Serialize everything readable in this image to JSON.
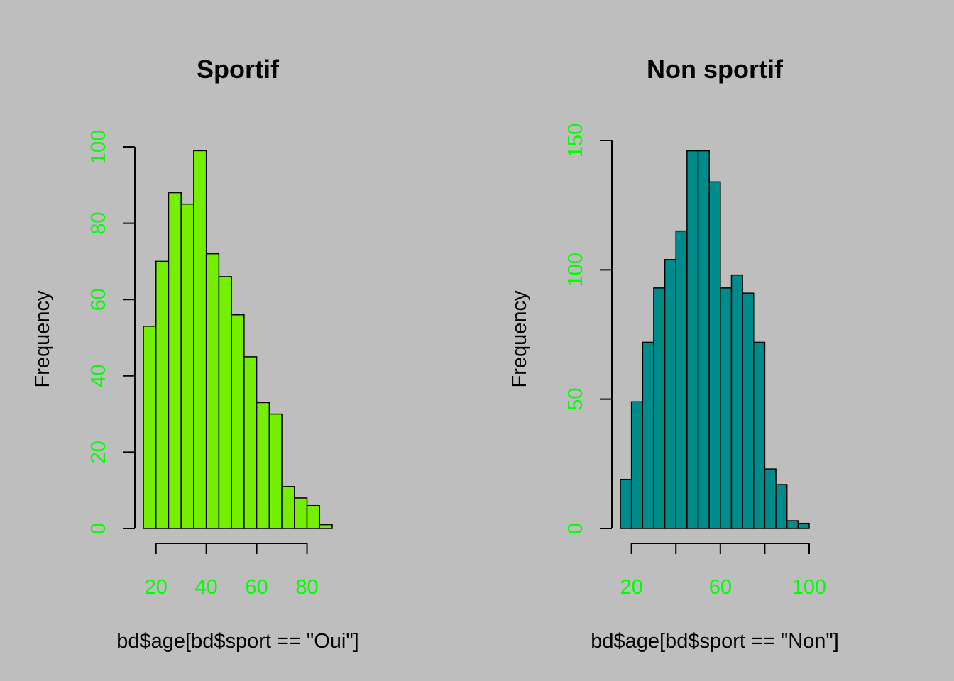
{
  "background": "#bebebe",
  "tick_color": "#00ff00",
  "chart_data": [
    {
      "type": "bar",
      "title": "Sportif",
      "xlabel": "bd$age[bd$sport == \"Oui\"]",
      "ylabel": "Frequency",
      "bar_color": "#76ee00",
      "bin_start": 15,
      "bin_width": 5,
      "values": [
        53,
        70,
        88,
        85,
        99,
        72,
        66,
        56,
        45,
        33,
        30,
        11,
        8,
        6,
        1
      ],
      "xlim": [
        15,
        90
      ],
      "ylim": [
        0,
        100
      ],
      "x_ticks": [
        20,
        40,
        60,
        80
      ],
      "x_tick_labels": [
        "20",
        "40",
        "60",
        "80"
      ],
      "y_ticks": [
        0,
        20,
        40,
        60,
        80,
        100
      ],
      "y_tick_labels": [
        "0",
        "20",
        "40",
        "60",
        "80",
        "100"
      ]
    },
    {
      "type": "bar",
      "title": "Non sportif",
      "xlabel": "bd$age[bd$sport == \"Non\"]",
      "ylabel": "Frequency",
      "bar_color": "#008b8b",
      "bin_start": 15,
      "bin_width": 5,
      "values": [
        19,
        49,
        72,
        93,
        104,
        115,
        146,
        146,
        134,
        93,
        98,
        91,
        72,
        23,
        17,
        3,
        2
      ],
      "xlim": [
        15,
        100
      ],
      "ylim": [
        0,
        150
      ],
      "x_ticks": [
        20,
        40,
        60,
        80,
        100
      ],
      "x_tick_labels": [
        "20",
        "",
        "60",
        "",
        "100"
      ],
      "y_ticks": [
        0,
        50,
        100,
        150
      ],
      "y_tick_labels": [
        "0",
        "50",
        "100",
        "150"
      ]
    }
  ]
}
